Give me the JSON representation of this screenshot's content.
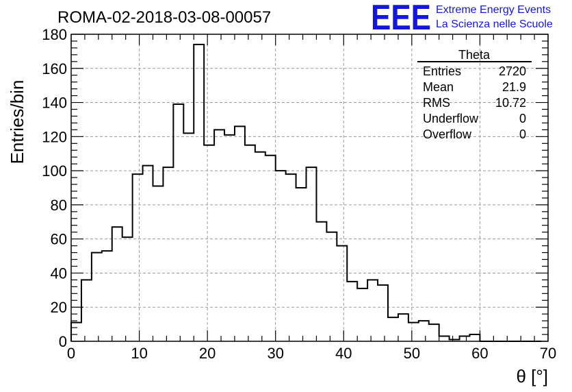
{
  "chart_data": {
    "type": "bar",
    "title": "ROMA-02-2018-03-08-00057",
    "xlabel": "θ [°]",
    "ylabel": "Entries/bin",
    "xlim": [
      0,
      70
    ],
    "ylim": [
      0,
      180
    ],
    "x_ticks": [
      "0",
      "10",
      "20",
      "30",
      "40",
      "50",
      "60",
      "70"
    ],
    "y_ticks": [
      "0",
      "20",
      "40",
      "60",
      "80",
      "100",
      "120",
      "140",
      "160",
      "180"
    ],
    "grid": true,
    "bin_width": 1.5,
    "x_start": 0,
    "values": [
      11,
      36,
      52,
      53,
      67,
      61,
      98,
      103,
      91,
      102,
      139,
      122,
      174,
      115,
      124,
      121,
      126,
      115,
      111,
      109,
      100,
      98,
      90,
      102,
      70,
      64,
      56,
      35,
      31,
      36,
      33,
      14,
      16,
      11,
      12,
      10,
      3,
      1,
      3,
      4,
      0,
      0,
      0,
      0,
      0,
      0,
      0
    ]
  },
  "stats": {
    "title": "Theta",
    "rows": [
      {
        "label": "Entries",
        "value": "2720"
      },
      {
        "label": "Mean",
        "value": "21.9"
      },
      {
        "label": "RMS",
        "value": "10.72"
      },
      {
        "label": "Underflow",
        "value": "0"
      },
      {
        "label": "Overflow",
        "value": "0"
      }
    ]
  },
  "logo": {
    "mark": "EEE",
    "line1": "Extreme Energy Events",
    "line2": "La Scienza nelle Scuole"
  }
}
